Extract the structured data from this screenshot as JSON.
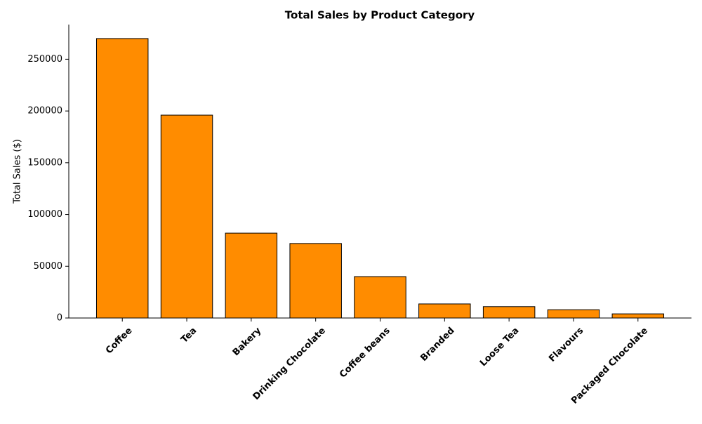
{
  "chart_data": {
    "type": "bar",
    "title": "Total Sales by Product Category",
    "y_label": "Total Sales ($)",
    "categories": [
      "Coffee",
      "Tea",
      "Bakery",
      "Drinking Chocolate",
      "Coffee beans",
      "Branded",
      "Loose Tea",
      "Flavours",
      "Packaged Chocolate"
    ],
    "values": [
      270000,
      196000,
      82000,
      72000,
      40000,
      13600,
      11000,
      8000,
      4000
    ],
    "color": "#ff8c00",
    "edge_color": "#000000",
    "ylim": [
      0,
      283500
    ],
    "yticks": [
      0,
      50000,
      100000,
      150000,
      200000,
      250000
    ],
    "grid": false
  }
}
